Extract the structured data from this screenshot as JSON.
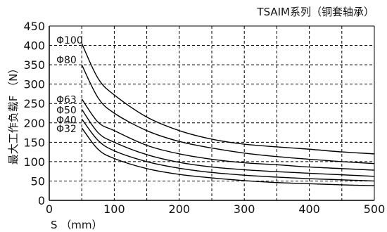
{
  "chart_data": {
    "type": "line",
    "title": "TSAIM系列（铜套轴承）",
    "xlabel": "S （mm）",
    "ylabel": "最大工作负载F （N）",
    "xlim": [
      0,
      500
    ],
    "ylim": [
      0,
      450
    ],
    "x_ticks": [
      "0",
      "100",
      "200",
      "300",
      "400",
      "500"
    ],
    "y_ticks": [
      "0",
      "50",
      "100",
      "150",
      "200",
      "250",
      "300",
      "350",
      "400",
      "450"
    ],
    "grid": true,
    "series": [
      {
        "name": "Φ100",
        "x": [
          50,
          75,
          100,
          150,
          200,
          250,
          300,
          350,
          400,
          450,
          500
        ],
        "y": [
          405,
          315,
          272,
          215,
          180,
          158,
          145,
          138,
          132,
          125,
          120
        ]
      },
      {
        "name": "Φ80",
        "x": [
          50,
          75,
          100,
          150,
          200,
          250,
          300,
          350,
          400,
          450,
          500
        ],
        "y": [
          350,
          265,
          225,
          180,
          152,
          135,
          122,
          113,
          106,
          100,
          95
        ]
      },
      {
        "name": "Φ63",
        "x": [
          50,
          75,
          100,
          150,
          200,
          250,
          300,
          350,
          400,
          450,
          500
        ],
        "y": [
          262,
          202,
          180,
          142,
          120,
          106,
          97,
          92,
          86,
          82,
          78
        ]
      },
      {
        "name": "Φ50",
        "x": [
          50,
          75,
          100,
          150,
          200,
          250,
          300,
          350,
          400,
          450,
          500
        ],
        "y": [
          235,
          175,
          150,
          118,
          98,
          86,
          79,
          74,
          70,
          66,
          62
        ]
      },
      {
        "name": "Φ40",
        "x": [
          50,
          75,
          100,
          150,
          200,
          250,
          300,
          350,
          400,
          450,
          500
        ],
        "y": [
          210,
          155,
          128,
          100,
          83,
          72,
          65,
          60,
          56,
          53,
          50
        ]
      },
      {
        "name": "Φ32",
        "x": [
          50,
          75,
          100,
          150,
          200,
          250,
          300,
          350,
          400,
          450,
          500
        ],
        "y": [
          187,
          132,
          108,
          82,
          67,
          58,
          51,
          46,
          43,
          40,
          38
        ]
      }
    ]
  }
}
